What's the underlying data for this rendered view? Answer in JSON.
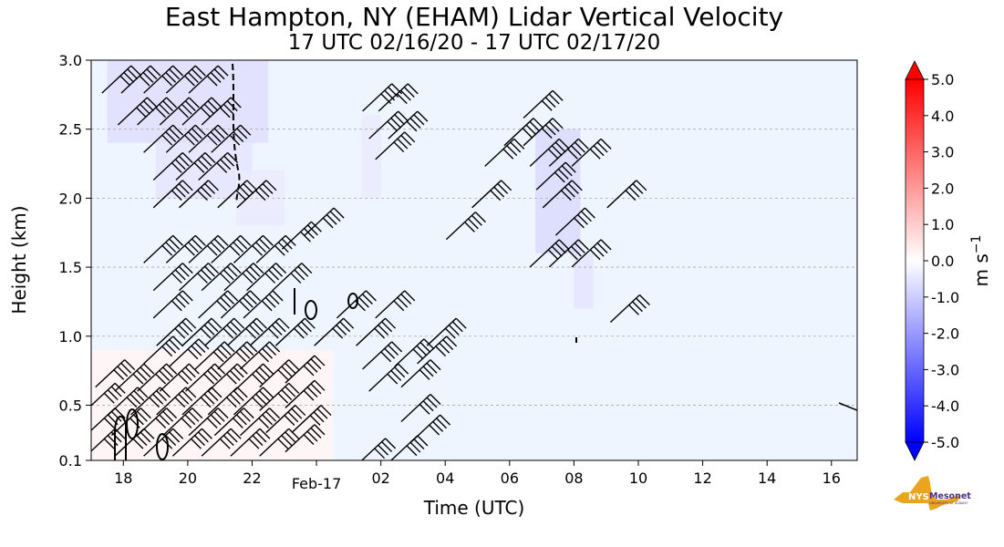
{
  "chart_data": {
    "type": "heatmap",
    "title": "East Hampton, NY (EHAM) Lidar Vertical Velocity",
    "subtitle": "17 UTC 02/16/20 - 17 UTC 02/17/20",
    "xlabel": "Time (UTC)",
    "ylabel": "Height (km)",
    "xlim": [
      17,
      40.8
    ],
    "ylim": [
      0.1,
      3.0
    ],
    "x_ticks": [
      {
        "x": 18,
        "label": "18"
      },
      {
        "x": 20,
        "label": "20"
      },
      {
        "x": 22,
        "label": "22"
      },
      {
        "x": 24,
        "label": "Feb-17"
      },
      {
        "x": 26,
        "label": "02"
      },
      {
        "x": 28,
        "label": "04"
      },
      {
        "x": 30,
        "label": "06"
      },
      {
        "x": 32,
        "label": "08"
      },
      {
        "x": 34,
        "label": "10"
      },
      {
        "x": 36,
        "label": "12"
      },
      {
        "x": 38,
        "label": "14"
      },
      {
        "x": 40,
        "label": "16"
      }
    ],
    "y_ticks": [
      {
        "y": 0.1,
        "label": "0.1"
      },
      {
        "y": 0.5,
        "label": "0.5"
      },
      {
        "y": 1.0,
        "label": "1.0"
      },
      {
        "y": 1.5,
        "label": "1.5"
      },
      {
        "y": 2.0,
        "label": "2.0"
      },
      {
        "y": 2.5,
        "label": "2.5"
      },
      {
        "y": 3.0,
        "label": "3.0"
      }
    ],
    "grid": "horizontal dashed",
    "colorbar": {
      "unit_label": "m s",
      "unit_superscript": "−1",
      "min": -5.0,
      "max": 5.0,
      "tick_labels": [
        "5.0",
        "4.0",
        "3.0",
        "2.0",
        "1.0",
        "0.0",
        "-1.0",
        "-2.0",
        "-3.0",
        "-4.0",
        "-5.0"
      ],
      "tick_values": [
        5,
        4,
        3,
        2,
        1,
        0,
        -1,
        -2,
        -3,
        -4,
        -5
      ],
      "colors": {
        "max": "#ff0000",
        "mid": "#ffffff",
        "min": "#0000ff"
      }
    },
    "background_color": "#eef5ff",
    "velocity_regions": [
      {
        "x": [
          17.5,
          22.5
        ],
        "y": [
          2.4,
          3.0
        ],
        "value": -0.6
      },
      {
        "x": [
          19.0,
          22.0
        ],
        "y": [
          2.0,
          2.4
        ],
        "value": -0.5
      },
      {
        "x": [
          21.5,
          23.0
        ],
        "y": [
          1.8,
          2.2
        ],
        "value": -0.4
      },
      {
        "x": [
          25.4,
          26.0
        ],
        "y": [
          2.0,
          2.6
        ],
        "value": -0.4
      },
      {
        "x": [
          30.8,
          32.2
        ],
        "y": [
          1.6,
          2.5
        ],
        "value": -0.7
      },
      {
        "x": [
          32.0,
          32.6
        ],
        "y": [
          1.2,
          1.6
        ],
        "value": -0.5
      },
      {
        "x": [
          17.0,
          24.5
        ],
        "y": [
          0.1,
          0.9
        ],
        "value": 0.2
      }
    ],
    "wind_barbs": [
      {
        "t": 17.9,
        "h": 2.88,
        "f": 4
      },
      {
        "t": 18.5,
        "h": 2.88,
        "f": 4
      },
      {
        "t": 19.2,
        "h": 2.88,
        "f": 4
      },
      {
        "t": 19.9,
        "h": 2.88,
        "f": 4
      },
      {
        "t": 20.6,
        "h": 2.88,
        "f": 4
      },
      {
        "t": 18.4,
        "h": 2.65,
        "f": 4
      },
      {
        "t": 19.0,
        "h": 2.65,
        "f": 4
      },
      {
        "t": 19.7,
        "h": 2.65,
        "f": 4
      },
      {
        "t": 20.4,
        "h": 2.65,
        "f": 4
      },
      {
        "t": 21.0,
        "h": 2.65,
        "f": 4
      },
      {
        "t": 19.2,
        "h": 2.45,
        "f": 4
      },
      {
        "t": 19.9,
        "h": 2.45,
        "f": 4
      },
      {
        "t": 20.6,
        "h": 2.45,
        "f": 4
      },
      {
        "t": 21.3,
        "h": 2.45,
        "f": 4
      },
      {
        "t": 19.5,
        "h": 2.25,
        "f": 4
      },
      {
        "t": 20.2,
        "h": 2.25,
        "f": 4
      },
      {
        "t": 20.9,
        "h": 2.25,
        "f": 4
      },
      {
        "t": 19.5,
        "h": 2.05,
        "f": 4
      },
      {
        "t": 20.3,
        "h": 2.05,
        "f": 4
      },
      {
        "t": 21.5,
        "h": 2.05,
        "f": 4
      },
      {
        "t": 22.1,
        "h": 2.05,
        "f": 4
      },
      {
        "t": 26.0,
        "h": 2.75,
        "f": 4
      },
      {
        "t": 26.5,
        "h": 2.75,
        "f": 4
      },
      {
        "t": 26.2,
        "h": 2.55,
        "f": 4
      },
      {
        "t": 26.8,
        "h": 2.55,
        "f": 4
      },
      {
        "t": 26.4,
        "h": 2.4,
        "f": 4
      },
      {
        "t": 31.0,
        "h": 2.7,
        "f": 4
      },
      {
        "t": 30.4,
        "h": 2.5,
        "f": 4
      },
      {
        "t": 31.0,
        "h": 2.5,
        "f": 4
      },
      {
        "t": 29.8,
        "h": 2.35,
        "f": 4
      },
      {
        "t": 31.2,
        "h": 2.35,
        "f": 4
      },
      {
        "t": 31.8,
        "h": 2.35,
        "f": 4
      },
      {
        "t": 32.5,
        "h": 2.35,
        "f": 4
      },
      {
        "t": 31.4,
        "h": 2.18,
        "f": 4
      },
      {
        "t": 29.4,
        "h": 2.05,
        "f": 4
      },
      {
        "t": 31.6,
        "h": 2.05,
        "f": 4
      },
      {
        "t": 33.6,
        "h": 2.05,
        "f": 4
      },
      {
        "t": 28.6,
        "h": 1.82,
        "f": 4
      },
      {
        "t": 32.0,
        "h": 1.85,
        "f": 4
      },
      {
        "t": 31.2,
        "h": 1.62,
        "f": 4
      },
      {
        "t": 31.8,
        "h": 1.62,
        "f": 4
      },
      {
        "t": 32.5,
        "h": 1.62,
        "f": 4
      },
      {
        "t": 33.7,
        "h": 1.22,
        "f": 4
      },
      {
        "t": 19.2,
        "h": 1.65,
        "f": 4
      },
      {
        "t": 19.9,
        "h": 1.65,
        "f": 4
      },
      {
        "t": 20.6,
        "h": 1.65,
        "f": 4
      },
      {
        "t": 21.3,
        "h": 1.65,
        "f": 4
      },
      {
        "t": 22.0,
        "h": 1.65,
        "f": 4
      },
      {
        "t": 22.7,
        "h": 1.65,
        "f": 4
      },
      {
        "t": 23.5,
        "h": 1.75,
        "f": 4
      },
      {
        "t": 24.2,
        "h": 1.85,
        "f": 4
      },
      {
        "t": 19.5,
        "h": 1.45,
        "f": 4
      },
      {
        "t": 20.3,
        "h": 1.45,
        "f": 4
      },
      {
        "t": 21.0,
        "h": 1.45,
        "f": 4
      },
      {
        "t": 21.7,
        "h": 1.45,
        "f": 4
      },
      {
        "t": 22.4,
        "h": 1.45,
        "f": 4
      },
      {
        "t": 23.2,
        "h": 1.45,
        "f": 4
      },
      {
        "t": 19.5,
        "h": 1.25,
        "f": 4
      },
      {
        "t": 20.9,
        "h": 1.25,
        "f": 4
      },
      {
        "t": 21.6,
        "h": 1.25,
        "f": 4
      },
      {
        "t": 22.3,
        "h": 1.25,
        "f": 4
      },
      {
        "t": 25.2,
        "h": 1.25,
        "f": 4
      },
      {
        "t": 26.4,
        "h": 1.25,
        "f": 4
      },
      {
        "t": 19.6,
        "h": 1.05,
        "f": 4
      },
      {
        "t": 20.4,
        "h": 1.05,
        "f": 4
      },
      {
        "t": 21.1,
        "h": 1.05,
        "f": 4
      },
      {
        "t": 21.8,
        "h": 1.05,
        "f": 4
      },
      {
        "t": 22.5,
        "h": 1.05,
        "f": 4
      },
      {
        "t": 23.3,
        "h": 1.05,
        "f": 4
      },
      {
        "t": 24.5,
        "h": 1.05,
        "f": 4
      },
      {
        "t": 25.8,
        "h": 1.05,
        "f": 4
      },
      {
        "t": 28.0,
        "h": 1.05,
        "f": 4
      },
      {
        "t": 19.2,
        "h": 0.92,
        "f": 4
      },
      {
        "t": 20.0,
        "h": 0.9,
        "f": 4
      },
      {
        "t": 20.8,
        "h": 0.88,
        "f": 4
      },
      {
        "t": 21.5,
        "h": 0.88,
        "f": 4
      },
      {
        "t": 22.2,
        "h": 0.88,
        "f": 4
      },
      {
        "t": 26.0,
        "h": 0.88,
        "f": 4
      },
      {
        "t": 27.0,
        "h": 0.9,
        "f": 4
      },
      {
        "t": 27.7,
        "h": 0.92,
        "f": 4
      },
      {
        "t": 17.7,
        "h": 0.75,
        "f": 4
      },
      {
        "t": 18.3,
        "h": 0.72,
        "f": 4
      },
      {
        "t": 19.0,
        "h": 0.72,
        "f": 4
      },
      {
        "t": 19.7,
        "h": 0.72,
        "f": 4
      },
      {
        "t": 20.5,
        "h": 0.72,
        "f": 4
      },
      {
        "t": 21.2,
        "h": 0.72,
        "f": 4
      },
      {
        "t": 22.0,
        "h": 0.72,
        "f": 4
      },
      {
        "t": 22.8,
        "h": 0.75,
        "f": 4
      },
      {
        "t": 23.6,
        "h": 0.78,
        "f": 4
      },
      {
        "t": 26.2,
        "h": 0.72,
        "f": 4
      },
      {
        "t": 27.2,
        "h": 0.75,
        "f": 4
      },
      {
        "t": 17.4,
        "h": 0.58,
        "f": 4
      },
      {
        "t": 18.1,
        "h": 0.55,
        "f": 4
      },
      {
        "t": 18.8,
        "h": 0.55,
        "f": 4
      },
      {
        "t": 19.6,
        "h": 0.55,
        "f": 4
      },
      {
        "t": 20.4,
        "h": 0.55,
        "f": 4
      },
      {
        "t": 21.2,
        "h": 0.55,
        "f": 4
      },
      {
        "t": 22.0,
        "h": 0.55,
        "f": 4
      },
      {
        "t": 22.8,
        "h": 0.58,
        "f": 4
      },
      {
        "t": 23.6,
        "h": 0.6,
        "f": 4
      },
      {
        "t": 27.2,
        "h": 0.5,
        "f": 4
      },
      {
        "t": 17.4,
        "h": 0.4,
        "f": 4
      },
      {
        "t": 18.2,
        "h": 0.4,
        "f": 4
      },
      {
        "t": 19.0,
        "h": 0.4,
        "f": 4
      },
      {
        "t": 19.8,
        "h": 0.4,
        "f": 4
      },
      {
        "t": 20.6,
        "h": 0.4,
        "f": 4
      },
      {
        "t": 21.4,
        "h": 0.4,
        "f": 4
      },
      {
        "t": 22.2,
        "h": 0.4,
        "f": 4
      },
      {
        "t": 23.0,
        "h": 0.42,
        "f": 4
      },
      {
        "t": 23.8,
        "h": 0.42,
        "f": 4
      },
      {
        "t": 27.5,
        "h": 0.35,
        "f": 4
      },
      {
        "t": 17.4,
        "h": 0.25,
        "f": 4
      },
      {
        "t": 18.3,
        "h": 0.25,
        "f": 4
      },
      {
        "t": 19.2,
        "h": 0.25,
        "f": 4
      },
      {
        "t": 20.1,
        "h": 0.25,
        "f": 4
      },
      {
        "t": 21.0,
        "h": 0.25,
        "f": 4
      },
      {
        "t": 21.9,
        "h": 0.25,
        "f": 4
      },
      {
        "t": 22.8,
        "h": 0.25,
        "f": 4
      },
      {
        "t": 23.6,
        "h": 0.28,
        "f": 4
      },
      {
        "t": 25.8,
        "h": 0.18,
        "f": 4
      },
      {
        "t": 26.8,
        "h": 0.2,
        "f": 4
      }
    ]
  },
  "logo": {
    "text_nys": "NYS",
    "text_mesonet": "Mesonet",
    "text_univ": "UNIVERSITY AT ALBANY"
  }
}
